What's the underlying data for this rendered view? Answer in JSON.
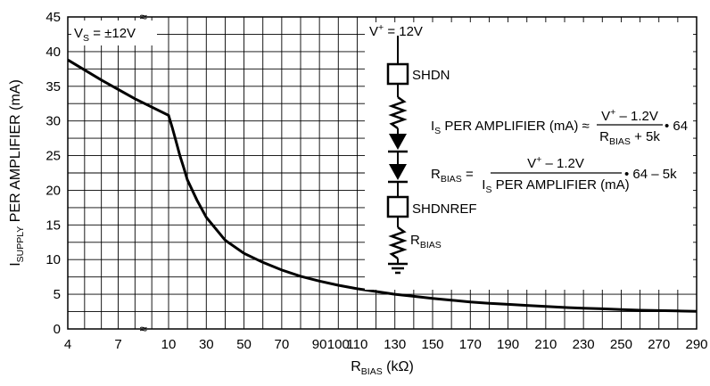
{
  "chart_data": {
    "type": "line",
    "title": "",
    "xlabel": {
      "main": "R",
      "sub": "BIAS",
      "rest": " (kΩ)"
    },
    "ylabel": {
      "main": "I",
      "sub": "SUPPLY",
      "rest": " PER AMPLIFIER (mA)"
    },
    "ylim": [
      0,
      45
    ],
    "yticks": [
      "0",
      "5",
      "10",
      "15",
      "20",
      "25",
      "30",
      "35",
      "40",
      "45"
    ],
    "x_scale": "broken",
    "x_segments": [
      {
        "range": [
          4,
          10
        ],
        "ticks": [
          "4",
          "7",
          "10"
        ]
      },
      {
        "range": [
          10,
          290
        ],
        "ticks": [
          "30",
          "50",
          "70",
          "90",
          "110",
          "130",
          "150",
          "170",
          "190",
          "210",
          "230",
          "250",
          "270",
          "290"
        ],
        "extra_ticks": [
          "100"
        ]
      }
    ],
    "axis_break_symbol": "≈",
    "grid": true,
    "series": [
      {
        "x": [
          4,
          6,
          8,
          10,
          12,
          14,
          16,
          18,
          20,
          25,
          30,
          40,
          50,
          60,
          70,
          80,
          90,
          100,
          110,
          120,
          130,
          140,
          150,
          160,
          170,
          180,
          190,
          200,
          210,
          220,
          230,
          240,
          250,
          260,
          270,
          280,
          290
        ],
        "y": [
          38.8,
          35.9,
          33.2,
          30.8,
          29.0,
          27.0,
          25.0,
          23.3,
          21.5,
          18.6,
          16.1,
          12.8,
          10.9,
          9.6,
          8.5,
          7.6,
          6.9,
          6.3,
          5.8,
          5.4,
          5.0,
          4.7,
          4.4,
          4.15,
          3.9,
          3.7,
          3.55,
          3.4,
          3.25,
          3.1,
          3.0,
          2.9,
          2.8,
          2.7,
          2.65,
          2.6,
          2.55
        ]
      }
    ],
    "annotations": {
      "vs": {
        "main": "V",
        "sub": "S",
        "rest": " = ±12V"
      },
      "vplus": {
        "main": "V",
        "sup": "+",
        "rest": " = 12V"
      },
      "shdn": "SHDN",
      "shdnref": "SHDNREF",
      "rbias": {
        "main": "R",
        "sub": "BIAS"
      },
      "eq1": {
        "lhs_main": "I",
        "lhs_sub": "S",
        "lhs_rest": " PER AMPLIFIER (mA) ≈",
        "num_main": "V",
        "num_sup": "+",
        "num_rest": " – 1.2V",
        "den_main": "R",
        "den_sub": "BIAS",
        "den_rest": " + 5k",
        "tail": "• 64"
      },
      "eq2": {
        "lhs_main": "R",
        "lhs_sub": "BIAS",
        "lhs_rest": " =",
        "num_main": "V",
        "num_sup": "+",
        "num_rest": " – 1.2V",
        "den_main": "I",
        "den_sub": "S",
        "den_rest": " PER AMPLIFIER (mA)",
        "tail": "• 64 – 5k"
      }
    }
  }
}
